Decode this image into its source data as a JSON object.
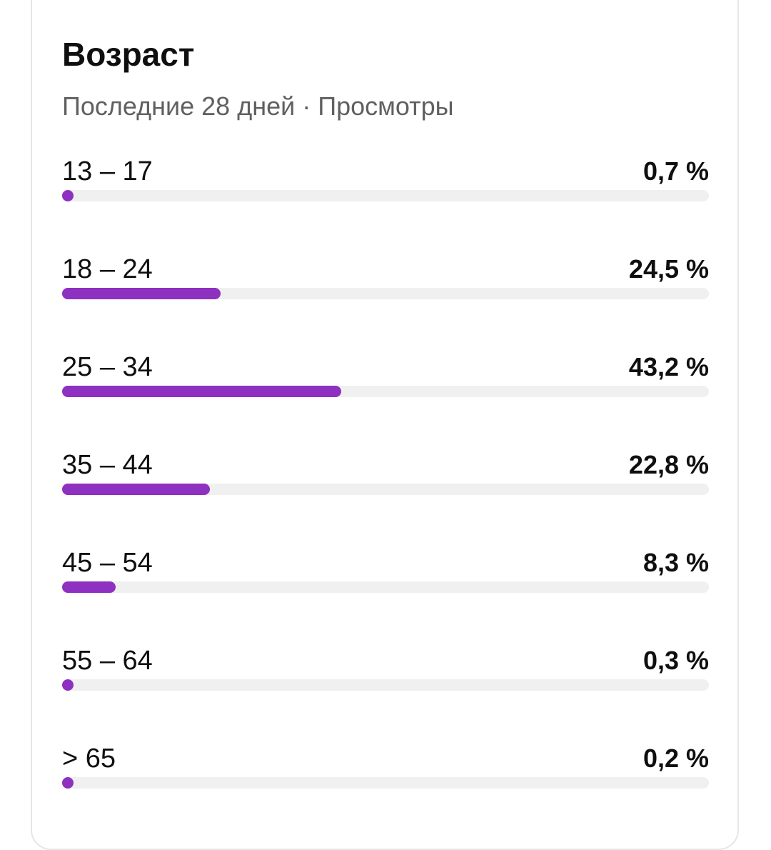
{
  "card": {
    "title": "Возраст",
    "subtitle": "Последние 28 дней · Просмотры"
  },
  "colors": {
    "bar_fill": "#8e30c0",
    "track": "#f0f0f0"
  },
  "chart_data": {
    "type": "bar",
    "orientation": "horizontal",
    "title": "Возраст",
    "subtitle": "Последние 28 дней · Просмотры",
    "xlim": [
      0,
      100
    ],
    "categories": [
      "13 – 17",
      "18 – 24",
      "25 – 34",
      "35 – 44",
      "45 – 54",
      "55 – 64",
      "> 65"
    ],
    "values": [
      0.7,
      24.5,
      43.2,
      22.8,
      8.3,
      0.3,
      0.2
    ],
    "value_labels": [
      "0,7 %",
      "24,5 %",
      "43,2 %",
      "22,8 %",
      "8,3 %",
      "0,3 %",
      "0,2 %"
    ]
  }
}
